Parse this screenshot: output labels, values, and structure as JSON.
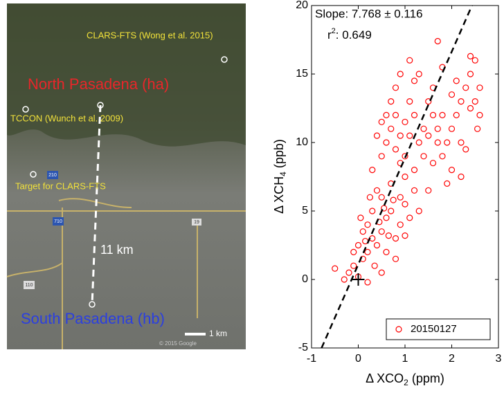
{
  "map": {
    "labels": {
      "clars": "CLARS-FTS (Wong et al. 2015)",
      "north": "North Pasadena (ha)",
      "tccon": "TCCON (Wunch et al. 2009)",
      "target": "Target for CLARS-FTS",
      "distance": "11 km",
      "south": "South Pasadena (hb)",
      "scale": "1 km",
      "copyright": "© 2015 Google",
      "shield_210": "210",
      "shield_710": "710",
      "shield_110": "110",
      "shield_19": "19"
    }
  },
  "chart_data": {
    "type": "scatter",
    "annotations": {
      "slope": "Slope: 7.768 ± 0.116",
      "r2_base": "r",
      "r2_sup": "2",
      "r2_value": ": 0.649"
    },
    "x_label": {
      "pre": "Δ XCO",
      "sub": "2",
      "post": " (ppm)"
    },
    "y_label": {
      "pre": "Δ XCH",
      "sub": "4",
      "post": " (ppb)"
    },
    "xlim": [
      -1,
      3
    ],
    "ylim": [
      -5,
      20
    ],
    "xticks": [
      -1,
      0,
      1,
      2,
      3
    ],
    "yticks": [
      -5,
      0,
      5,
      10,
      15,
      20
    ],
    "grid": false,
    "legend": "lower right",
    "fit": {
      "slope": 7.768,
      "intercept": 1.1,
      "color": "#000000"
    },
    "origin_marker": {
      "x": 0,
      "y": 0
    },
    "x": [
      -0.2,
      -0.1,
      0,
      0.1,
      0.2,
      0.3,
      0.2,
      0.4,
      0.5,
      0.6,
      0.7,
      0.5,
      0.8,
      0.9,
      1.0,
      0.3,
      0.1,
      0,
      0.4,
      0.6,
      0.7,
      0.9,
      1.1,
      1.2,
      0.8,
      -0.3,
      0.2,
      0.05,
      0.35,
      0.55,
      0.65,
      0.45,
      0.15,
      1.0,
      0.25,
      -0.1,
      0.75,
      0.5,
      1.3,
      -0.5,
      0.5,
      0.6,
      0.7,
      0.8,
      0.9,
      1.0,
      1.1,
      0.8,
      1.2,
      1.3,
      1.4,
      1.0,
      0.7,
      1.2,
      0.9,
      1.5,
      1.1,
      0.6,
      1.3,
      0.4,
      1.6,
      1.4,
      0.8,
      1.5,
      1.2,
      1.0,
      0.3,
      1.7,
      0.9,
      1.1,
      1.6,
      0.5,
      1.6,
      1.8,
      1.9,
      2.0,
      2.1,
      2.2,
      2.3,
      2.4,
      2.5,
      2.0,
      2.2,
      1.8,
      2.4,
      2.6,
      2.3,
      1.7,
      2.1,
      2.5,
      1.9,
      2.0,
      1.7,
      2.6,
      2.4,
      1.5,
      2.2,
      1.8,
      2.55
    ],
    "series": [
      {
        "name": "20150127",
        "color": "#ff0000",
        "values": [
          0.5,
          1,
          0.2,
          1.5,
          2,
          3,
          4,
          2.5,
          3.5,
          4.5,
          5,
          6,
          3,
          4,
          5.5,
          5,
          3.5,
          2.5,
          6.5,
          2,
          7,
          6,
          4.5,
          6.5,
          1.5,
          0,
          -0.2,
          4.5,
          1,
          5.2,
          3.2,
          4.2,
          2.8,
          3.2,
          6,
          2,
          5.8,
          0.5,
          5,
          0.8,
          9,
          10,
          11,
          12,
          10.5,
          11.5,
          13,
          14,
          12,
          10,
          11,
          9,
          13,
          14.5,
          8.5,
          13,
          10.5,
          12,
          15,
          10.5,
          12,
          9,
          9.5,
          10.5,
          8,
          7.5,
          8,
          11,
          15,
          16,
          14,
          11.5,
          8.5,
          9,
          10,
          11,
          12,
          13,
          14,
          15,
          16,
          8,
          10,
          12,
          12.5,
          14,
          9.5,
          10,
          14.5,
          13,
          7,
          13.5,
          17.4,
          12,
          16.3,
          6.5,
          7.5,
          15.5,
          11
        ]
      }
    ]
  }
}
